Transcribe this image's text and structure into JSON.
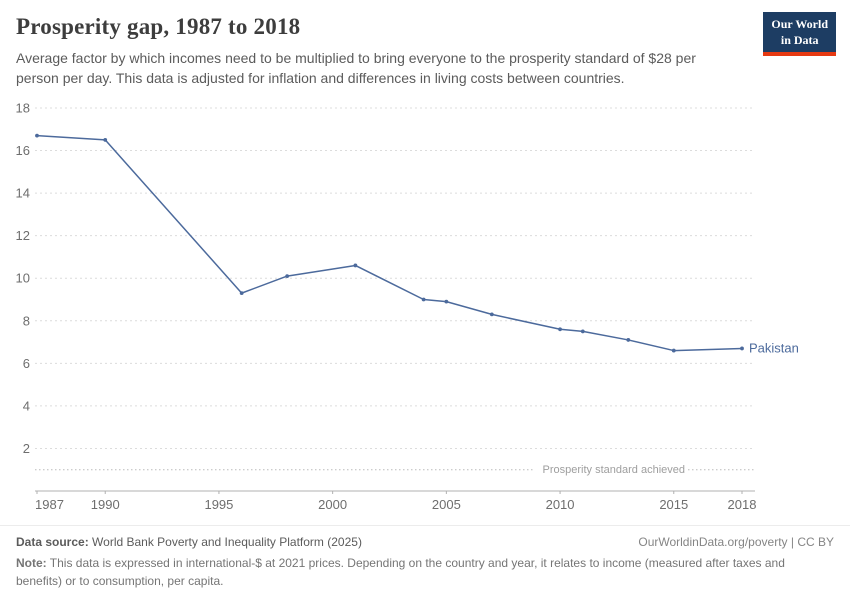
{
  "header": {
    "title": "Prosperity gap, 1987 to 2018",
    "subtitle": "Average factor by which incomes need to be multiplied to bring everyone to the prosperity standard of $28 per person per day. This data is adjusted for inflation and differences in living costs between countries.",
    "logo": {
      "line1": "Our World",
      "line2": "in Data",
      "bg": "#1d3d63",
      "accent": "#e63912"
    }
  },
  "chart_data": {
    "type": "line",
    "title": "Prosperity gap, 1987 to 2018",
    "xlabel": "",
    "ylabel": "",
    "xlim": [
      1987,
      2018
    ],
    "ylim": [
      0,
      18
    ],
    "x_ticks": [
      1987,
      1990,
      1995,
      2000,
      2005,
      2010,
      2015,
      2018
    ],
    "y_ticks": [
      2,
      4,
      6,
      8,
      10,
      12,
      14,
      16,
      18
    ],
    "grid": "horizontal dashed",
    "legend_position": "end-of-line label",
    "reference_line": {
      "value": 1,
      "label": "Prosperity standard achieved"
    },
    "series": [
      {
        "name": "Pakistan",
        "color": "#4c6a9c",
        "x": [
          1987,
          1990,
          1996,
          1998,
          2001,
          2004,
          2005,
          2007,
          2010,
          2011,
          2013,
          2015,
          2018
        ],
        "values": [
          16.7,
          16.5,
          9.3,
          10.1,
          10.6,
          9.0,
          8.9,
          8.3,
          7.6,
          7.5,
          7.1,
          6.6,
          6.7
        ]
      }
    ]
  },
  "footer": {
    "datasource_label": "Data source:",
    "datasource_value": " World Bank Poverty and Inequality Platform (2025)",
    "link": "OurWorldinData.org/poverty | CC BY",
    "note_label": "Note:",
    "note_value": " This data is expressed in international-$ at 2021 prices. Depending on the country and year, it relates to income (measured after taxes and benefits) or to consumption, per capita."
  }
}
